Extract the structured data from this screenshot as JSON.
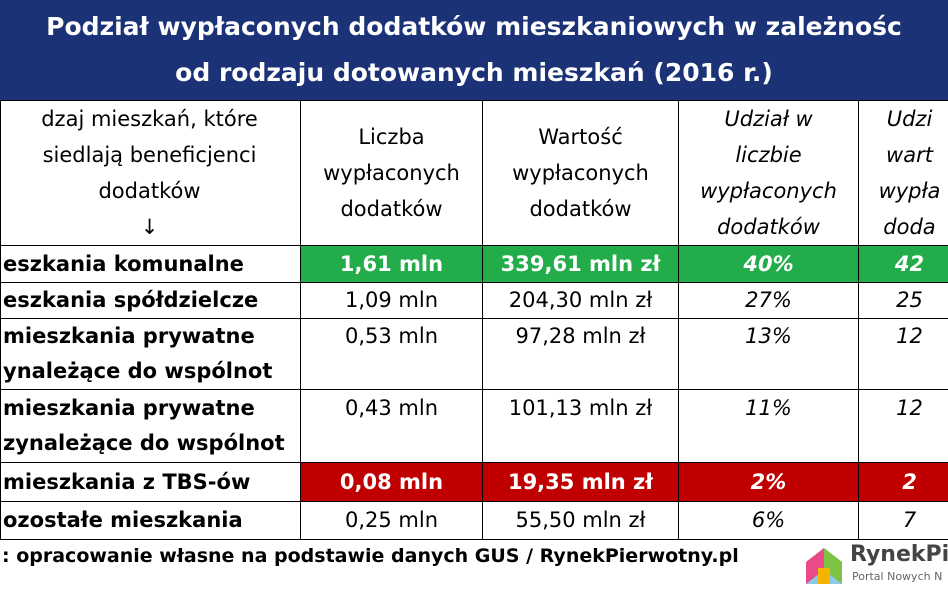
{
  "header": {
    "title": [
      "Podział wypłaconych dodatków mieszkaniowych w zależnośc",
      "od rodzaju dotowanych mieszkań (2016 r.)"
    ]
  },
  "table": {
    "columns": [
      [
        "dzaj mieszkań, które",
        "siedlają beneficjenci",
        "dodatków",
        "↓"
      ],
      [
        "Liczba",
        "wypłaconych",
        "dodatków"
      ],
      [
        "Wartość",
        "wypłaconych",
        "dodatków"
      ],
      [
        "Udział w",
        "liczbie",
        "wypłaconych",
        "dodatków"
      ],
      [
        "Udzi",
        "wart",
        "wypła",
        "doda"
      ]
    ],
    "rows": [
      [
        [
          "eszkania komunalne"
        ],
        [
          "1,61 mln"
        ],
        [
          "339,61 mln zł"
        ],
        [
          "40%"
        ],
        [
          "42"
        ]
      ],
      [
        [
          "eszkania spółdzielcze"
        ],
        [
          "1,09 mln"
        ],
        [
          "204,30 mln zł"
        ],
        [
          "27%"
        ],
        [
          "25"
        ]
      ],
      [
        [
          "mieszkania prywatne",
          "ynależące do wspólnot"
        ],
        [
          "0,53 mln",
          ""
        ],
        [
          "97,28 mln zł",
          ""
        ],
        [
          "13%",
          ""
        ],
        [
          "12",
          ""
        ]
      ],
      [
        [
          "mieszkania prywatne",
          "zynależące do wspólnot"
        ],
        [
          "0,43 mln",
          ""
        ],
        [
          "101,13 mln zł",
          ""
        ],
        [
          "11%",
          ""
        ],
        [
          "12",
          ""
        ]
      ],
      [
        [
          "mieszkania z TBS-ów"
        ],
        [
          "0,08 mln"
        ],
        [
          "19,35 mln zł"
        ],
        [
          "2%"
        ],
        [
          "2"
        ]
      ],
      [
        [
          "ozostałe mieszkania"
        ],
        [
          "0,25 mln"
        ],
        [
          "55,50 mln zł"
        ],
        [
          "6%"
        ],
        [
          "7"
        ]
      ]
    ]
  },
  "footer": {
    "source": ": opracowanie własne na podstawie danych GUS / RynekPierwotny.pl"
  },
  "logo": {
    "name": "RynekPie",
    "tagline": "Portal Nowych N"
  }
}
